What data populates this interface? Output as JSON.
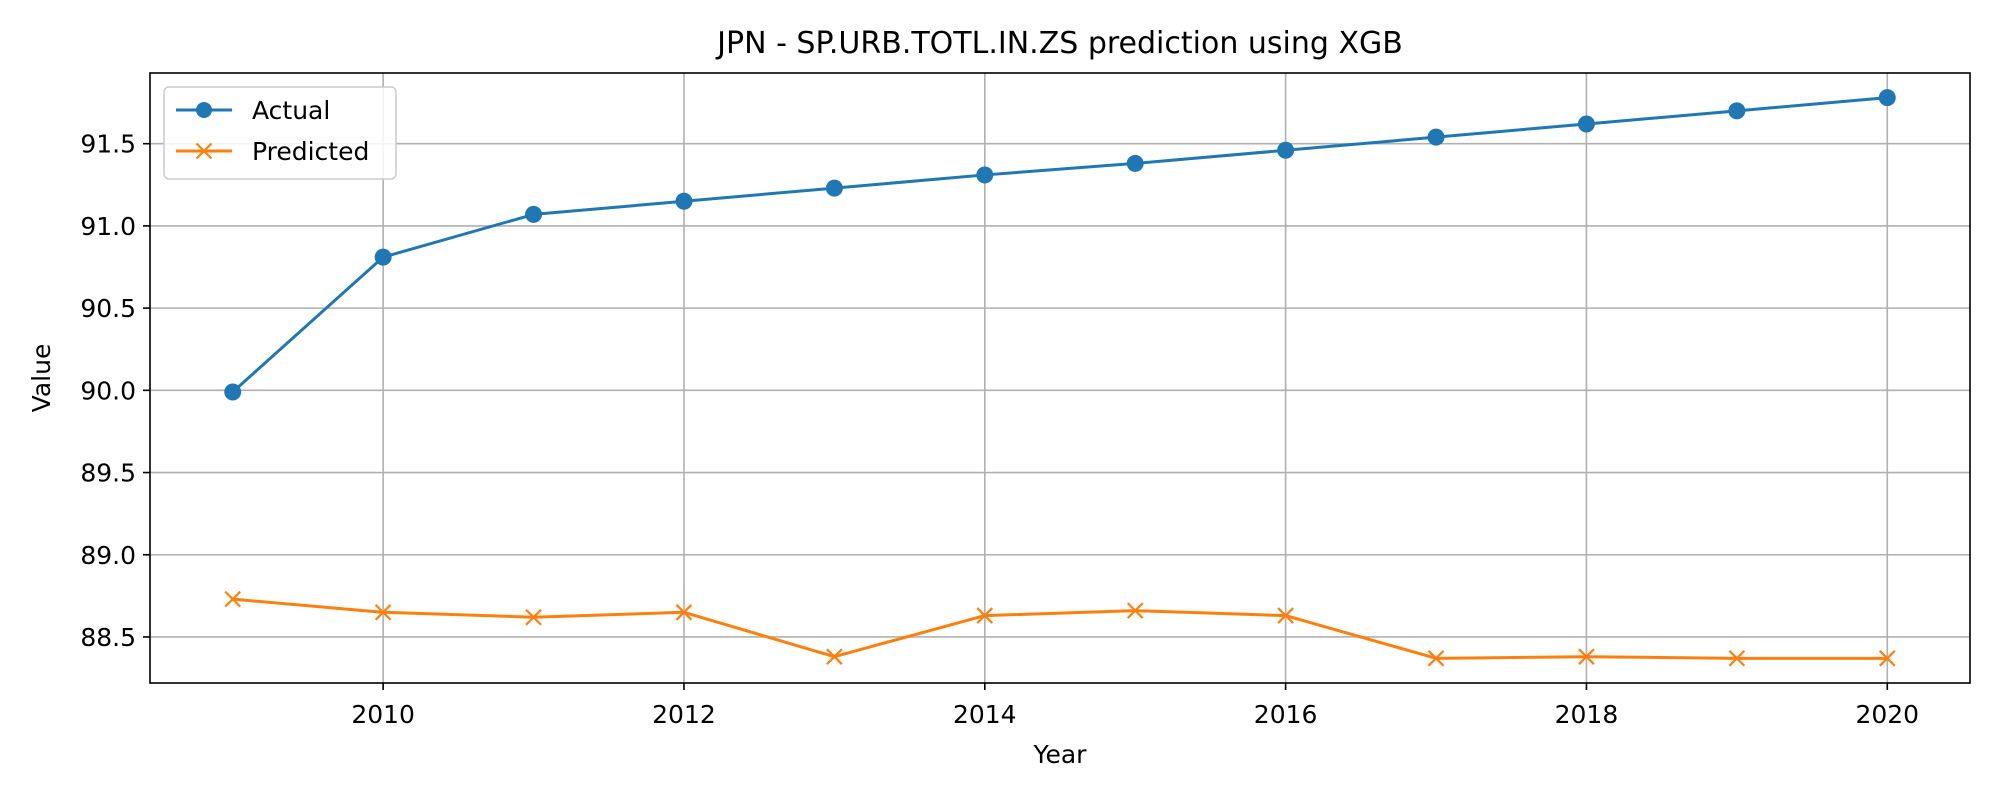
{
  "chart_data": {
    "type": "line",
    "title": "JPN - SP.URB.TOTL.IN.ZS prediction using XGB",
    "xlabel": "Year",
    "ylabel": "Value",
    "x": [
      2009,
      2010,
      2011,
      2012,
      2013,
      2014,
      2015,
      2016,
      2017,
      2018,
      2019,
      2020
    ],
    "xlim": [
      2008.45,
      2020.55
    ],
    "ylim": [
      88.22,
      91.93
    ],
    "xticks": [
      2010,
      2012,
      2014,
      2016,
      2018,
      2020
    ],
    "yticks": [
      88.5,
      89.0,
      89.5,
      90.0,
      90.5,
      91.0,
      91.5
    ],
    "ytick_labels": [
      "88.5",
      "89.0",
      "89.5",
      "90.0",
      "90.5",
      "91.0",
      "91.5"
    ],
    "grid": true,
    "legend_position": "upper-left",
    "series": [
      {
        "name": "Actual",
        "color": "#1f77b4",
        "marker": "circle",
        "values": [
          89.99,
          90.81,
          91.07,
          91.15,
          91.23,
          91.31,
          91.38,
          91.46,
          91.54,
          91.62,
          91.7,
          91.78
        ]
      },
      {
        "name": "Predicted",
        "color": "#ff7f0e",
        "marker": "x",
        "values": [
          88.73,
          88.65,
          88.62,
          88.65,
          88.38,
          88.63,
          88.66,
          88.63,
          88.37,
          88.38,
          88.37,
          88.37
        ]
      }
    ]
  }
}
